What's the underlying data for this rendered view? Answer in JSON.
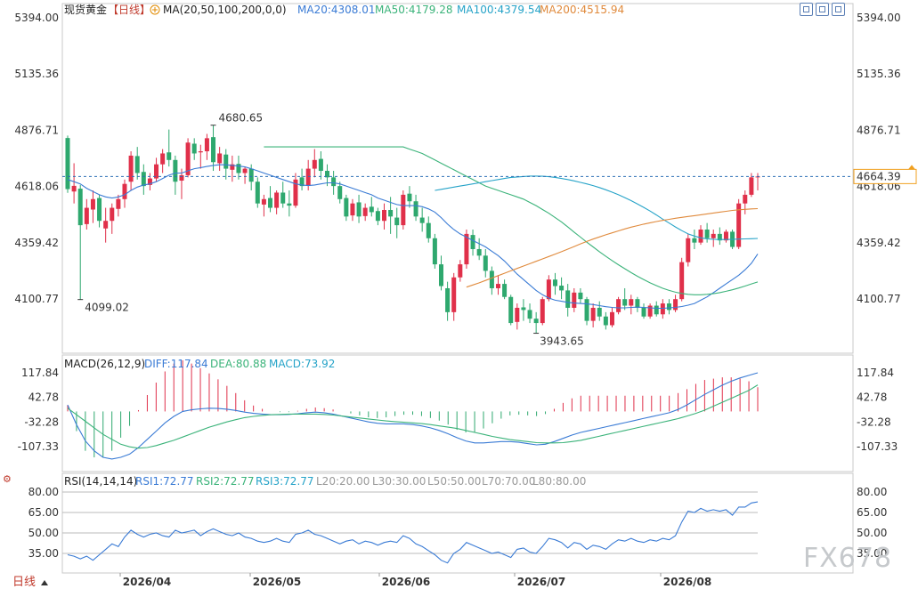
{
  "chart_data": {
    "type": "candlestick",
    "title": "现货黄金",
    "period": "日线",
    "currency_icon": "circle-plus-icon",
    "x_tick_labels": [
      "2026/04",
      "2026/05",
      "2026/06",
      "2026/07",
      "2026/08"
    ],
    "main_panel": {
      "y_ticks": [
        "5394.00",
        "5135.36",
        "4876.71",
        "4618.06",
        "4359.42",
        "4100.77"
      ],
      "y_tick_values": [
        5394.0,
        5135.36,
        4876.71,
        4618.06,
        4359.42,
        4100.77
      ],
      "ylim": [
        3860,
        5394
      ],
      "legend": {
        "ma_label": "MA(20,50,100,200,0,0)",
        "ma20": "MA20:4308.01",
        "ma50": "MA50:4179.28",
        "ma100": "MA100:4379.54",
        "ma200": "MA200:4515.94"
      },
      "last_price_label": "4664.39",
      "high_label": "4680.65",
      "low_label_1": "4099.02",
      "low_label_2": "3943.65",
      "candles": [
        [
          4841,
          4852,
          4589,
          4606
        ],
        [
          4595,
          4725,
          4540,
          4621
        ],
        [
          4608,
          4625,
          4098,
          4440
        ],
        [
          4445,
          4560,
          4420,
          4520
        ],
        [
          4512,
          4600,
          4450,
          4560
        ],
        [
          4565,
          4580,
          4430,
          4460
        ],
        [
          4425,
          4520,
          4360,
          4460
        ],
        [
          4460,
          4540,
          4400,
          4520
        ],
        [
          4515,
          4580,
          4480,
          4560
        ],
        [
          4560,
          4650,
          4520,
          4630
        ],
        [
          4640,
          4780,
          4600,
          4760
        ],
        [
          4758,
          4800,
          4650,
          4680
        ],
        [
          4685,
          4720,
          4580,
          4620
        ],
        [
          4625,
          4680,
          4600,
          4655
        ],
        [
          4655,
          4750,
          4640,
          4720
        ],
        [
          4720,
          4790,
          4680,
          4770
        ],
        [
          4775,
          4880,
          4710,
          4740
        ],
        [
          4740,
          4760,
          4580,
          4640
        ],
        [
          4645,
          4700,
          4560,
          4670
        ],
        [
          4670,
          4840,
          4660,
          4820
        ],
        [
          4815,
          4840,
          4740,
          4770
        ],
        [
          4775,
          4810,
          4700,
          4780
        ],
        [
          4780,
          4860,
          4740,
          4840
        ],
        [
          4845,
          4900,
          4690,
          4730
        ],
        [
          4725,
          4800,
          4690,
          4770
        ],
        [
          4765,
          4790,
          4650,
          4700
        ],
        [
          4695,
          4760,
          4640,
          4720
        ],
        [
          4722,
          4760,
          4650,
          4680
        ],
        [
          4680,
          4710,
          4630,
          4700
        ],
        [
          4700,
          4720,
          4600,
          4640
        ],
        [
          4640,
          4660,
          4520,
          4540
        ],
        [
          4535,
          4580,
          4480,
          4560
        ],
        [
          4565,
          4620,
          4500,
          4520
        ],
        [
          4520,
          4600,
          4490,
          4590
        ],
        [
          4590,
          4640,
          4520,
          4540
        ],
        [
          4540,
          4600,
          4480,
          4530
        ],
        [
          4530,
          4680,
          4520,
          4650
        ],
        [
          4660,
          4700,
          4600,
          4620
        ],
        [
          4622,
          4740,
          4600,
          4700
        ],
        [
          4700,
          4790,
          4660,
          4740
        ],
        [
          4745,
          4780,
          4650,
          4690
        ],
        [
          4690,
          4720,
          4620,
          4660
        ],
        [
          4660,
          4690,
          4580,
          4620
        ],
        [
          4620,
          4640,
          4540,
          4560
        ],
        [
          4565,
          4580,
          4460,
          4480
        ],
        [
          4485,
          4560,
          4460,
          4540
        ],
        [
          4545,
          4580,
          4450,
          4480
        ],
        [
          4482,
          4540,
          4460,
          4520
        ],
        [
          4525,
          4570,
          4480,
          4500
        ],
        [
          4505,
          4520,
          4440,
          4460
        ],
        [
          4460,
          4540,
          4420,
          4510
        ],
        [
          4510,
          4570,
          4400,
          4480
        ],
        [
          4475,
          4520,
          4380,
          4440
        ],
        [
          4440,
          4600,
          4420,
          4580
        ],
        [
          4585,
          4620,
          4520,
          4550
        ],
        [
          4550,
          4580,
          4460,
          4480
        ],
        [
          4475,
          4520,
          4410,
          4450
        ],
        [
          4450,
          4480,
          4360,
          4380
        ],
        [
          4380,
          4400,
          4240,
          4260
        ],
        [
          4260,
          4300,
          4140,
          4160
        ],
        [
          4150,
          4180,
          4000,
          4040
        ],
        [
          4040,
          4220,
          4000,
          4200
        ],
        [
          4200,
          4280,
          4180,
          4260
        ],
        [
          4260,
          4420,
          4240,
          4400
        ],
        [
          4395,
          4420,
          4300,
          4330
        ],
        [
          4330,
          4380,
          4280,
          4300
        ],
        [
          4300,
          4330,
          4200,
          4230
        ],
        [
          4230,
          4250,
          4120,
          4150
        ],
        [
          4150,
          4210,
          4120,
          4170
        ],
        [
          4170,
          4190,
          4100,
          4110
        ],
        [
          4110,
          4120,
          3980,
          3990
        ],
        [
          3995,
          4080,
          3960,
          4060
        ],
        [
          4062,
          4100,
          4000,
          4050
        ],
        [
          4050,
          4080,
          3990,
          4010
        ],
        [
          4010,
          4040,
          3943,
          3990
        ],
        [
          3990,
          4110,
          3980,
          4100
        ],
        [
          4100,
          4210,
          4090,
          4190
        ],
        [
          4190,
          4220,
          4120,
          4160
        ],
        [
          4162,
          4200,
          4100,
          4140
        ],
        [
          4140,
          4170,
          4020,
          4060
        ],
        [
          4060,
          4150,
          4040,
          4130
        ],
        [
          4130,
          4150,
          4080,
          4100
        ],
        [
          4100,
          4110,
          3980,
          4000
        ],
        [
          4000,
          4080,
          3970,
          4060
        ],
        [
          4060,
          4090,
          4000,
          4020
        ],
        [
          4020,
          4040,
          3960,
          3980
        ],
        [
          3980,
          4060,
          3970,
          4040
        ],
        [
          4040,
          4110,
          4030,
          4100
        ],
        [
          4100,
          4150,
          4050,
          4070
        ],
        [
          4070,
          4120,
          4030,
          4100
        ],
        [
          4100,
          4110,
          4040,
          4060
        ],
        [
          4060,
          4080,
          4010,
          4020
        ],
        [
          4020,
          4080,
          4010,
          4070
        ],
        [
          4070,
          4090,
          4020,
          4030
        ],
        [
          4030,
          4100,
          4010,
          4080
        ],
        [
          4080,
          4100,
          4030,
          4050
        ],
        [
          4050,
          4120,
          4040,
          4100
        ],
        [
          4100,
          4290,
          4090,
          4270
        ],
        [
          4270,
          4400,
          4250,
          4380
        ],
        [
          4380,
          4420,
          4330,
          4360
        ],
        [
          4360,
          4440,
          4350,
          4420
        ],
        [
          4420,
          4450,
          4360,
          4380
        ],
        [
          4380,
          4420,
          4340,
          4400
        ],
        [
          4400,
          4430,
          4350,
          4370
        ],
        [
          4370,
          4420,
          4360,
          4410
        ],
        [
          4410,
          4420,
          4330,
          4340
        ],
        [
          4340,
          4560,
          4330,
          4540
        ],
        [
          4540,
          4600,
          4490,
          4580
        ],
        [
          4580,
          4680,
          4570,
          4660
        ],
        [
          4660,
          4680,
          4600,
          4664
        ]
      ],
      "ma20": [
        4650,
        4640,
        4630,
        4610,
        4595,
        4580,
        4570,
        4565,
        4570,
        4580,
        4600,
        4615,
        4625,
        4630,
        4640,
        4655,
        4670,
        4680,
        4680,
        4690,
        4700,
        4705,
        4710,
        4715,
        4718,
        4718,
        4715,
        4712,
        4708,
        4700,
        4690,
        4680,
        4670,
        4660,
        4650,
        4640,
        4630,
        4625,
        4622,
        4625,
        4630,
        4635,
        4635,
        4630,
        4620,
        4610,
        4600,
        4590,
        4580,
        4565,
        4555,
        4545,
        4535,
        4530,
        4530,
        4530,
        4525,
        4515,
        4500,
        4475,
        4445,
        4420,
        4400,
        4385,
        4370,
        4355,
        4340,
        4320,
        4300,
        4275,
        4245,
        4215,
        4190,
        4165,
        4140,
        4120,
        4105,
        4095,
        4090,
        4085,
        4082,
        4080,
        4078,
        4075,
        4070,
        4065,
        4062,
        4060,
        4060,
        4062,
        4063,
        4062,
        4060,
        4058,
        4058,
        4060,
        4062,
        4066,
        4072,
        4080,
        4095,
        4110,
        4130,
        4150,
        4170,
        4190,
        4210,
        4235,
        4265,
        4308
      ],
      "ma50": [
        4800,
        4800,
        4800,
        4800,
        4800,
        4800,
        4800,
        4800,
        4800,
        4800,
        4800,
        4800,
        4800,
        4800,
        4800,
        4800,
        4800,
        4800,
        4800,
        4800,
        4800,
        4800,
        4800,
        4790,
        4780,
        4770,
        4755,
        4740,
        4725,
        4710,
        4695,
        4680,
        4665,
        4650,
        4635,
        4620,
        4610,
        4600,
        4590,
        4580,
        4570,
        4560,
        4545,
        4530,
        4512,
        4495,
        4475,
        4455,
        4432,
        4408,
        4385,
        4362,
        4340,
        4318,
        4297,
        4277,
        4258,
        4240,
        4222,
        4205,
        4190,
        4175,
        4162,
        4150,
        4140,
        4132,
        4126,
        4122,
        4120,
        4120,
        4122,
        4125,
        4130,
        4136,
        4143,
        4151,
        4160,
        4170,
        4179
      ],
      "ma100": [
        4600,
        4605,
        4610,
        4615,
        4620,
        4625,
        4630,
        4635,
        4640,
        4645,
        4650,
        4655,
        4660,
        4662,
        4664,
        4666,
        4666,
        4665,
        4663,
        4660,
        4655,
        4650,
        4644,
        4637,
        4630,
        4622,
        4613,
        4603,
        4592,
        4580,
        4567,
        4553,
        4538,
        4522,
        4505,
        4487,
        4468,
        4450,
        4432,
        4415,
        4400,
        4390,
        4382,
        4377,
        4375,
        4374,
        4374,
        4375,
        4376,
        4377,
        4378,
        4379
      ],
      "ma200": [
        4155,
        4165,
        4175,
        4186,
        4197,
        4208,
        4219,
        4230,
        4241,
        4252,
        4263,
        4274,
        4285,
        4296,
        4307,
        4318,
        4330,
        4342,
        4354,
        4365,
        4376,
        4386,
        4396,
        4405,
        4414,
        4423,
        4431,
        4438,
        4445,
        4451,
        4457,
        4462,
        4467,
        4472,
        4476,
        4480,
        4484,
        4488,
        4492,
        4496,
        4500,
        4504,
        4508,
        4511,
        4513,
        4515,
        4516
      ]
    },
    "macd_panel": {
      "label": "MACD(26,12,9)",
      "diff": "DIFF:117.84",
      "dea": "DEA:80.88",
      "macd": "MACD:73.92",
      "y_ticks": [
        "117.84",
        "42.78",
        "-32.28",
        "-107.33"
      ],
      "y_tick_values": [
        117.84,
        42.78,
        -32.28,
        -107.33
      ],
      "ylim": [
        -160,
        130
      ],
      "diff_values": [
        20,
        -40,
        -90,
        -120,
        -140,
        -145,
        -140,
        -130,
        -110,
        -85,
        -60,
        -35,
        -15,
        0,
        5,
        8,
        10,
        9,
        7,
        3,
        -2,
        -6,
        -8,
        -10,
        -10,
        -9,
        -7,
        -4,
        -2,
        -4,
        -8,
        -14,
        -20,
        -26,
        -32,
        -36,
        -38,
        -38,
        -38,
        -40,
        -44,
        -50,
        -58,
        -68,
        -80,
        -90,
        -96,
        -96,
        -94,
        -92,
        -92,
        -94,
        -98,
        -102,
        -100,
        -92,
        -82,
        -72,
        -64,
        -58,
        -52,
        -46,
        -40,
        -34,
        -28,
        -22,
        -16,
        -10,
        -4,
        6,
        20,
        36,
        52,
        66,
        80,
        92,
        102,
        110,
        117.84
      ],
      "dea_values": [
        10,
        -10,
        -30,
        -50,
        -70,
        -85,
        -100,
        -108,
        -112,
        -110,
        -104,
        -96,
        -88,
        -78,
        -68,
        -58,
        -48,
        -40,
        -32,
        -25,
        -19,
        -15,
        -12,
        -10,
        -9,
        -8,
        -8,
        -8,
        -8,
        -9,
        -11,
        -14,
        -17,
        -20,
        -23,
        -26,
        -29,
        -31,
        -33,
        -35,
        -37,
        -40,
        -44,
        -48,
        -52,
        -58,
        -64,
        -70,
        -76,
        -81,
        -86,
        -89,
        -92,
        -95,
        -96,
        -96,
        -95,
        -92,
        -88,
        -82,
        -76,
        -70,
        -64,
        -58,
        -52,
        -46,
        -40,
        -34,
        -28,
        -22,
        -14,
        -6,
        4,
        16,
        28,
        40,
        52,
        64,
        80.88
      ]
    },
    "rsi_panel": {
      "label": "RSI(14,14,14)",
      "rsi1": "RSI1:72.77",
      "rsi2": "RSI2:72.77",
      "rsi3": "RSI3:72.77",
      "levels_text": [
        "L20:20.00",
        "L30:30.00",
        "L50:50.00",
        "L70:70.00",
        "L80:80.00"
      ],
      "y_ticks": [
        "80.00",
        "65.00",
        "50.00",
        "35.00"
      ],
      "y_tick_values": [
        80,
        65,
        50,
        35
      ],
      "ylim": [
        26,
        83
      ],
      "values": [
        34,
        33,
        31,
        33,
        30,
        34,
        38,
        42,
        40,
        47,
        52,
        49,
        47,
        49,
        50,
        48,
        47,
        52,
        50,
        51,
        52,
        48,
        51,
        53,
        51,
        49,
        48,
        50,
        47,
        46,
        44,
        43,
        44,
        46,
        44,
        43,
        49,
        50,
        52,
        49,
        48,
        46,
        44,
        42,
        44,
        45,
        42,
        44,
        43,
        41,
        43,
        44,
        43,
        48,
        46,
        42,
        40,
        37,
        34,
        30,
        28,
        35,
        38,
        43,
        41,
        39,
        37,
        35,
        36,
        34,
        32,
        38,
        39,
        36,
        35,
        40,
        46,
        45,
        43,
        39,
        43,
        42,
        38,
        41,
        40,
        38,
        42,
        45,
        44,
        46,
        44,
        43,
        45,
        44,
        46,
        45,
        48,
        58,
        66,
        65,
        68,
        66,
        67,
        66,
        67,
        63,
        69,
        69,
        72,
        72.77
      ]
    },
    "watermark": "FX678"
  }
}
